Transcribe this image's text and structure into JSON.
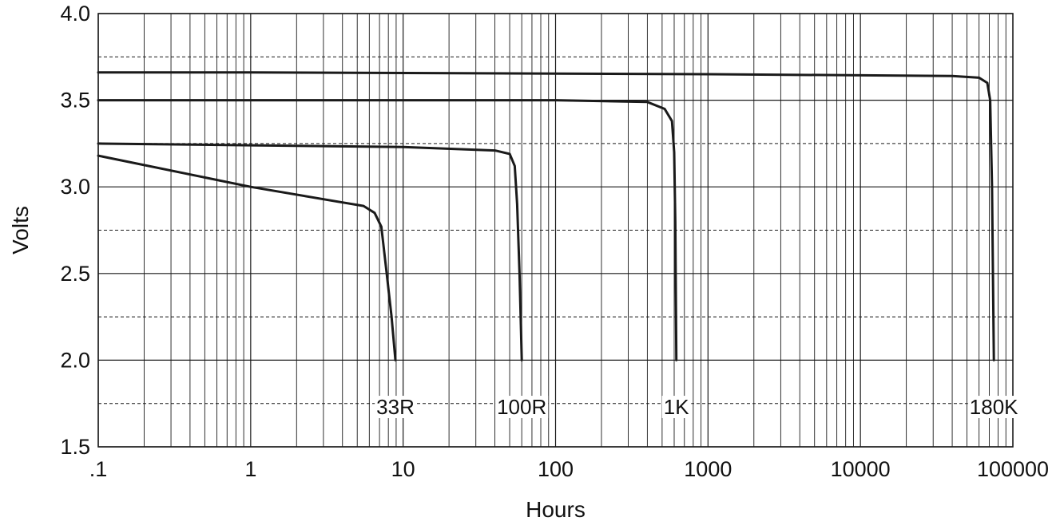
{
  "chart_data": {
    "type": "line",
    "title": "",
    "xlabel": "Hours",
    "ylabel": "Volts",
    "x_scale": "log",
    "xlim": [
      0.1,
      100000
    ],
    "ylim": [
      1.5,
      4.0
    ],
    "x_tick_values": [
      0.1,
      1,
      10,
      100,
      1000,
      10000,
      100000
    ],
    "x_tick_labels": [
      ".1",
      "1",
      "10",
      "100",
      "1000",
      "10000",
      "100000"
    ],
    "y_tick_values": [
      1.5,
      2.0,
      2.5,
      3.0,
      3.5,
      4.0
    ],
    "y_tick_labels": [
      "1.5",
      "2.0",
      "2.5",
      "3.0",
      "3.5",
      "4.0"
    ],
    "grid": true,
    "legend": "none",
    "series": [
      {
        "name": "33R",
        "label_at": [
          8.9,
          1.73
        ],
        "points": [
          [
            0.1,
            3.18
          ],
          [
            1,
            3.0
          ],
          [
            4,
            2.91
          ],
          [
            5.5,
            2.89
          ],
          [
            6.5,
            2.85
          ],
          [
            7.2,
            2.77
          ],
          [
            7.8,
            2.5
          ],
          [
            8.4,
            2.25
          ],
          [
            8.9,
            2.0
          ]
        ]
      },
      {
        "name": "100R",
        "label_at": [
          60,
          1.73
        ],
        "points": [
          [
            0.1,
            3.25
          ],
          [
            1,
            3.24
          ],
          [
            10,
            3.23
          ],
          [
            40,
            3.21
          ],
          [
            50,
            3.19
          ],
          [
            54,
            3.12
          ],
          [
            56,
            2.9
          ],
          [
            58,
            2.5
          ],
          [
            60,
            2.0
          ]
        ]
      },
      {
        "name": "1K",
        "label_at": [
          620,
          1.73
        ],
        "points": [
          [
            0.1,
            3.5
          ],
          [
            1,
            3.5
          ],
          [
            100,
            3.5
          ],
          [
            400,
            3.49
          ],
          [
            520,
            3.45
          ],
          [
            580,
            3.38
          ],
          [
            600,
            3.2
          ],
          [
            610,
            2.8
          ],
          [
            620,
            2.0
          ]
        ]
      },
      {
        "name": "180K",
        "label_at": [
          75000,
          1.73
        ],
        "points": [
          [
            0.1,
            3.66
          ],
          [
            1,
            3.66
          ],
          [
            1000,
            3.65
          ],
          [
            40000,
            3.64
          ],
          [
            60000,
            3.63
          ],
          [
            68000,
            3.6
          ],
          [
            71000,
            3.5
          ],
          [
            73000,
            3.0
          ],
          [
            75000,
            2.0
          ]
        ]
      }
    ]
  }
}
